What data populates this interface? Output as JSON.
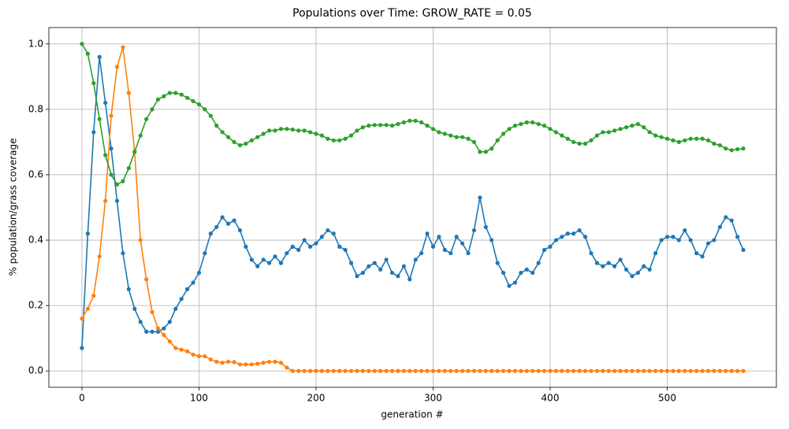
{
  "chart_data": {
    "type": "line",
    "title": "Populations over Time: GROW_RATE = 0.05",
    "xlabel": "generation #",
    "ylabel": "% population/grass coverage",
    "x": [
      0,
      5,
      10,
      15,
      20,
      25,
      30,
      35,
      40,
      45,
      50,
      55,
      60,
      65,
      70,
      75,
      80,
      85,
      90,
      95,
      100,
      105,
      110,
      115,
      120,
      125,
      130,
      135,
      140,
      145,
      150,
      155,
      160,
      165,
      170,
      175,
      180,
      185,
      190,
      195,
      200,
      205,
      210,
      215,
      220,
      225,
      230,
      235,
      240,
      245,
      250,
      255,
      260,
      265,
      270,
      275,
      280,
      285,
      290,
      295,
      300,
      305,
      310,
      315,
      320,
      325,
      330,
      335,
      340,
      345,
      350,
      355,
      360,
      365,
      370,
      375,
      380,
      385,
      390,
      395,
      400,
      405,
      410,
      415,
      420,
      425,
      430,
      435,
      440,
      445,
      450,
      455,
      460,
      465,
      470,
      475,
      480,
      485,
      490,
      495,
      500,
      505,
      510,
      515,
      520,
      525,
      530,
      535,
      540,
      545,
      550,
      555,
      560,
      565
    ],
    "series": [
      {
        "color": "#1f77b4",
        "values": [
          0.07,
          0.42,
          0.73,
          0.96,
          0.82,
          0.68,
          0.52,
          0.36,
          0.25,
          0.19,
          0.15,
          0.12,
          0.12,
          0.12,
          0.13,
          0.15,
          0.19,
          0.22,
          0.25,
          0.27,
          0.3,
          0.36,
          0.42,
          0.44,
          0.47,
          0.45,
          0.46,
          0.43,
          0.38,
          0.34,
          0.32,
          0.34,
          0.33,
          0.35,
          0.33,
          0.36,
          0.38,
          0.37,
          0.4,
          0.38,
          0.39,
          0.41,
          0.43,
          0.42,
          0.38,
          0.37,
          0.33,
          0.29,
          0.3,
          0.32,
          0.33,
          0.31,
          0.34,
          0.3,
          0.29,
          0.32,
          0.28,
          0.34,
          0.36,
          0.42,
          0.38,
          0.41,
          0.37,
          0.36,
          0.41,
          0.39,
          0.36,
          0.43,
          0.53,
          0.44,
          0.4,
          0.33,
          0.3,
          0.26,
          0.27,
          0.3,
          0.31,
          0.3,
          0.33,
          0.37,
          0.38,
          0.4,
          0.41,
          0.42,
          0.42,
          0.43,
          0.41,
          0.36,
          0.33,
          0.32,
          0.33,
          0.32,
          0.34,
          0.31,
          0.29,
          0.3,
          0.32,
          0.31,
          0.36,
          0.4,
          0.41,
          0.41,
          0.4,
          0.43,
          0.4,
          0.36,
          0.35,
          0.39,
          0.4,
          0.44,
          0.47,
          0.46,
          0.41,
          0.37
        ]
      },
      {
        "color": "#ff7f0e",
        "values": [
          0.16,
          0.19,
          0.23,
          0.35,
          0.52,
          0.78,
          0.93,
          0.99,
          0.85,
          0.67,
          0.4,
          0.28,
          0.18,
          0.13,
          0.11,
          0.09,
          0.07,
          0.065,
          0.06,
          0.05,
          0.045,
          0.045,
          0.035,
          0.028,
          0.025,
          0.028,
          0.027,
          0.02,
          0.02,
          0.02,
          0.022,
          0.025,
          0.028,
          0.028,
          0.025,
          0.01,
          0,
          0,
          0,
          0,
          0,
          0,
          0,
          0,
          0,
          0,
          0,
          0,
          0,
          0,
          0,
          0,
          0,
          0,
          0,
          0,
          0,
          0,
          0,
          0,
          0,
          0,
          0,
          0,
          0,
          0,
          0,
          0,
          0,
          0,
          0,
          0,
          0,
          0,
          0,
          0,
          0,
          0,
          0,
          0,
          0,
          0,
          0,
          0,
          0,
          0,
          0,
          0,
          0,
          0,
          0,
          0,
          0,
          0,
          0,
          0,
          0,
          0,
          0,
          0,
          0,
          0,
          0,
          0,
          0,
          0,
          0,
          0,
          0,
          0,
          0,
          0,
          0,
          0
        ]
      },
      {
        "color": "#2ca02c",
        "values": [
          1.0,
          0.97,
          0.88,
          0.77,
          0.66,
          0.6,
          0.57,
          0.58,
          0.62,
          0.67,
          0.72,
          0.77,
          0.8,
          0.83,
          0.84,
          0.85,
          0.85,
          0.845,
          0.835,
          0.825,
          0.815,
          0.8,
          0.78,
          0.75,
          0.73,
          0.715,
          0.7,
          0.69,
          0.695,
          0.705,
          0.715,
          0.725,
          0.735,
          0.735,
          0.74,
          0.74,
          0.738,
          0.735,
          0.735,
          0.73,
          0.725,
          0.72,
          0.71,
          0.705,
          0.705,
          0.71,
          0.72,
          0.735,
          0.745,
          0.75,
          0.752,
          0.752,
          0.752,
          0.75,
          0.755,
          0.76,
          0.765,
          0.765,
          0.76,
          0.75,
          0.74,
          0.73,
          0.725,
          0.72,
          0.715,
          0.715,
          0.71,
          0.7,
          0.67,
          0.67,
          0.68,
          0.705,
          0.725,
          0.74,
          0.75,
          0.755,
          0.76,
          0.76,
          0.755,
          0.75,
          0.74,
          0.73,
          0.72,
          0.71,
          0.7,
          0.695,
          0.695,
          0.705,
          0.72,
          0.73,
          0.73,
          0.735,
          0.74,
          0.745,
          0.75,
          0.755,
          0.745,
          0.73,
          0.72,
          0.715,
          0.71,
          0.705,
          0.7,
          0.705,
          0.71,
          0.71,
          0.71,
          0.705,
          0.695,
          0.69,
          0.68,
          0.675,
          0.678,
          0.68
        ]
      }
    ],
    "xlim": [
      -28.25,
      593.25
    ],
    "ylim": [
      -0.05,
      1.05
    ],
    "xticks": [
      0,
      100,
      200,
      300,
      400,
      500
    ],
    "yticks": [
      {
        "value": 0,
        "label": "0.0"
      },
      0.2,
      0.4,
      0.6,
      0.8,
      {
        "value": 1,
        "label": "1.0"
      }
    ],
    "grid": true
  }
}
